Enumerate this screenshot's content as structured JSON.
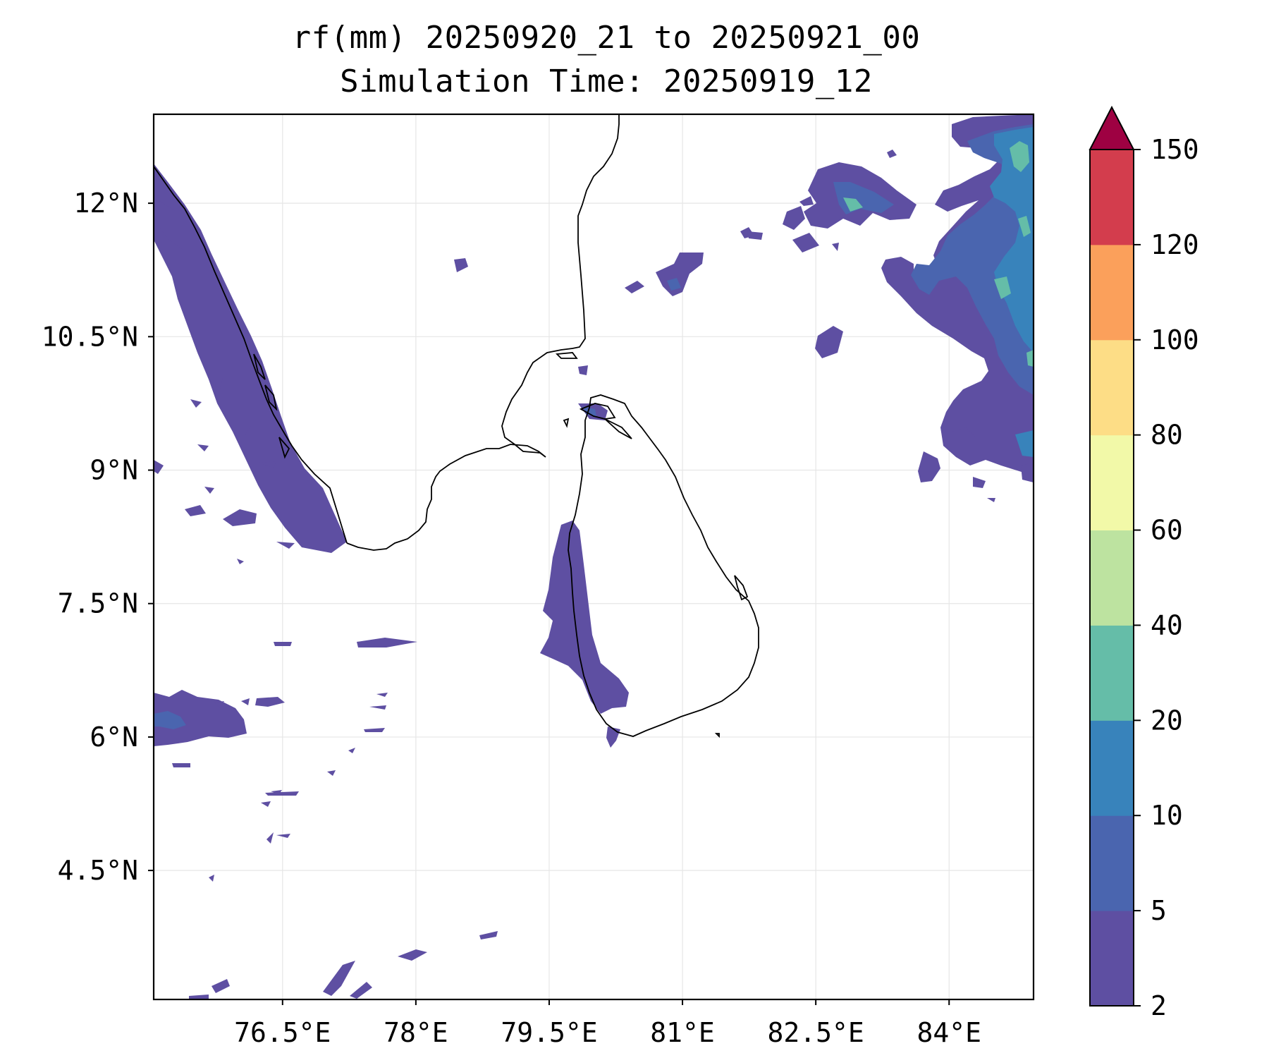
{
  "title_line1": "rf(mm) 20250920_21 to 20250921_00",
  "title_line2": "Simulation Time: 20250919_12",
  "map": {
    "x_ticks": [
      "76.5°E",
      "78°E",
      "79.5°E",
      "81°E",
      "82.5°E",
      "84°E"
    ],
    "y_ticks": [
      "12°N",
      "10.5°N",
      "9°N",
      "7.5°N",
      "6°N",
      "4.5°N"
    ],
    "x_tick_values": [
      76.5,
      78,
      79.5,
      81,
      82.5,
      84
    ],
    "y_tick_values": [
      12,
      10.5,
      9,
      7.5,
      6,
      4.5
    ],
    "lon_range": [
      75.05,
      84.95
    ],
    "lat_range": [
      3.05,
      13.0
    ],
    "grid": true,
    "coastline_color": "#000000",
    "regions": [
      {
        "name": "west-india-coast-band",
        "level": 2
      },
      {
        "name": "west-sri-lanka-band",
        "level": 2
      },
      {
        "name": "northeast-cluster",
        "level": 5
      },
      {
        "name": "northeast-core",
        "level": 10
      },
      {
        "name": "northeast-peaks",
        "level": 20
      },
      {
        "name": "southwest-maldives-cells",
        "level": 2
      },
      {
        "name": "southwest-core",
        "level": 5
      }
    ]
  },
  "colorbar": {
    "ticks": [
      "150",
      "120",
      "100",
      "80",
      "60",
      "40",
      "20",
      "10",
      "5",
      "2"
    ],
    "levels": [
      2,
      5,
      10,
      20,
      40,
      60,
      80,
      100,
      120,
      150
    ],
    "colors": [
      "#5e4fa2",
      "#4a65af",
      "#3883bb",
      "#65bda8",
      "#bde3a0",
      "#f2f9a8",
      "#fddd86",
      "#fba05b",
      "#d33d4d"
    ],
    "extend_color": "#9e0142",
    "extend": "max"
  }
}
